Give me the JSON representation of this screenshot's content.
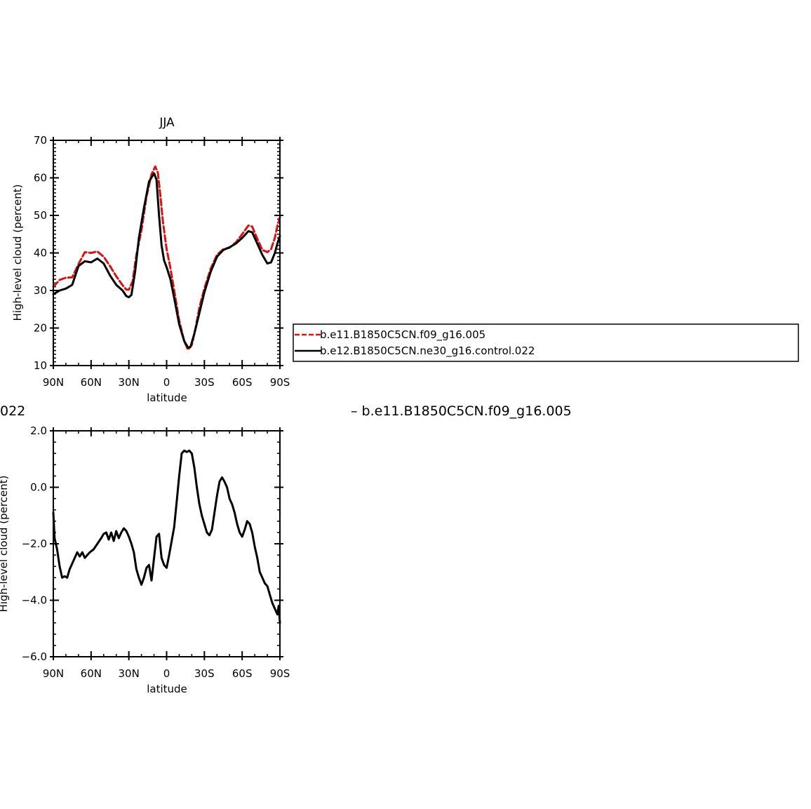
{
  "chart_data": [
    {
      "type": "line",
      "title": "JJA",
      "xlabel": "latitude",
      "ylabel": "High-level cloud (percent)",
      "x_direction": "north-to-south",
      "xlim": [
        90,
        -90
      ],
      "ylim": [
        10,
        70
      ],
      "xticks": [
        {
          "value": 90,
          "label": "90N"
        },
        {
          "value": 60,
          "label": "60N"
        },
        {
          "value": 30,
          "label": "30N"
        },
        {
          "value": 0,
          "label": "0"
        },
        {
          "value": -30,
          "label": "30S"
        },
        {
          "value": -60,
          "label": "60S"
        },
        {
          "value": -90,
          "label": "90S"
        }
      ],
      "yticks": [
        {
          "value": 10,
          "label": "10"
        },
        {
          "value": 20,
          "label": "20"
        },
        {
          "value": 30,
          "label": "30"
        },
        {
          "value": 40,
          "label": "40"
        },
        {
          "value": 50,
          "label": "50"
        },
        {
          "value": 60,
          "label": "60"
        },
        {
          "value": 70,
          "label": "70"
        }
      ],
      "grid": false,
      "legend": {
        "placement": "right",
        "entries": [
          {
            "name": "b.e11.B1850C5CN.f09_g16.005",
            "color": "#dd1111",
            "dash": "dashed"
          },
          {
            "name": "b.e12.B1850C5CN.ne30_g16.control.022",
            "color": "#000000",
            "dash": "solid"
          }
        ]
      },
      "series": [
        {
          "name": "b.e11.B1850C5CN.f09_g16.005",
          "color": "#dd1111",
          "dash": "dashed",
          "x": [
            90,
            85,
            80,
            75,
            70,
            65,
            60,
            55,
            50,
            45,
            40,
            35,
            32,
            30,
            27,
            24,
            20,
            16,
            12,
            9,
            7,
            5,
            3,
            0,
            -3,
            -6,
            -10,
            -14,
            -17,
            -20,
            -23,
            -26,
            -30,
            -35,
            -40,
            -45,
            -50,
            -55,
            -60,
            -65,
            -68,
            -72,
            -76,
            -80,
            -83,
            -86,
            -88,
            -90
          ],
          "values": [
            31,
            32.8,
            33.4,
            33.5,
            37,
            40.2,
            40,
            40.4,
            39,
            36.5,
            33.8,
            31.4,
            30.2,
            30.2,
            32.5,
            39.5,
            46,
            55,
            61,
            63,
            61.5,
            55.5,
            48.5,
            41,
            36,
            30,
            22,
            16.5,
            14.2,
            15.5,
            20,
            25.5,
            30.5,
            35.8,
            39.5,
            41,
            41.4,
            42.8,
            45,
            47.3,
            47,
            43.8,
            40.8,
            40.2,
            41,
            44,
            47.2,
            49.5
          ]
        },
        {
          "name": "b.e12.B1850C5CN.ne30_g16.control.022",
          "color": "#000000",
          "dash": "solid",
          "x": [
            90,
            85,
            80,
            75,
            70,
            65,
            60,
            55,
            50,
            45,
            40,
            35,
            32,
            30,
            28,
            25,
            22,
            18,
            14,
            10,
            8,
            6,
            4,
            2,
            0,
            -3,
            -6,
            -10,
            -14,
            -17,
            -19,
            -22,
            -26,
            -30,
            -35,
            -40,
            -45,
            -50,
            -55,
            -60,
            -65,
            -68,
            -72,
            -76,
            -80,
            -83,
            -86,
            -88,
            -90
          ],
          "values": [
            29,
            30,
            30.5,
            31.5,
            36.5,
            37.8,
            37.5,
            38.5,
            37.2,
            34,
            31.5,
            30,
            28.5,
            28.2,
            28.8,
            35,
            44,
            52,
            59,
            61.2,
            59.5,
            50,
            42,
            38,
            36.2,
            33,
            28,
            21,
            16.5,
            14.8,
            15,
            18.5,
            24,
            29.5,
            35,
            39,
            40.8,
            41.5,
            42.5,
            44,
            45.8,
            45.5,
            42.5,
            39.5,
            37.2,
            37.5,
            40,
            42.5,
            44.5
          ]
        }
      ]
    },
    {
      "type": "line",
      "title": "",
      "title_fragment": "022",
      "xlabel": "latitude",
      "ylabel": "High-level cloud (percent)",
      "x_direction": "north-to-south",
      "xlim": [
        90,
        -90
      ],
      "ylim": [
        -6,
        2
      ],
      "xticks": [
        {
          "value": 90,
          "label": "90N"
        },
        {
          "value": 60,
          "label": "60N"
        },
        {
          "value": 30,
          "label": "30N"
        },
        {
          "value": 0,
          "label": "0"
        },
        {
          "value": -30,
          "label": "30S"
        },
        {
          "value": -60,
          "label": "60S"
        },
        {
          "value": -90,
          "label": "90S"
        }
      ],
      "yticks": [
        {
          "value": -6,
          "label": "−6.0"
        },
        {
          "value": -4,
          "label": "−4.0"
        },
        {
          "value": -2,
          "label": "−2.0"
        },
        {
          "value": 0,
          "label": "0.0"
        },
        {
          "value": 2,
          "label": "2.0"
        }
      ],
      "grid": false,
      "right_fragment": "– b.e11.B1850C5CN.f09_g16.005",
      "series": [
        {
          "color": "#000000",
          "dash": "solid",
          "x": [
            90,
            89,
            87,
            85,
            83,
            81,
            79,
            77,
            75,
            73,
            71,
            69,
            67,
            65,
            63,
            61,
            58,
            55,
            52,
            50,
            48,
            46,
            44,
            42,
            40,
            38,
            36,
            34,
            32,
            30,
            28,
            26,
            24,
            22,
            20,
            18,
            16,
            14,
            12,
            10,
            8,
            6,
            4,
            2,
            0,
            -2,
            -4,
            -6,
            -8,
            -10,
            -12,
            -14,
            -16,
            -18,
            -20,
            -22,
            -24,
            -26,
            -28,
            -30,
            -32,
            -34,
            -36,
            -38,
            -40,
            -42,
            -44,
            -46,
            -48,
            -50,
            -52,
            -54,
            -56,
            -58,
            -60,
            -62,
            -64,
            -66,
            -68,
            -70,
            -72,
            -74,
            -76,
            -78,
            -80,
            -82,
            -84,
            -86,
            -88,
            -89,
            -90
          ],
          "values": [
            -0.9,
            -1.8,
            -2.2,
            -2.8,
            -3.2,
            -3.15,
            -3.2,
            -2.9,
            -2.7,
            -2.5,
            -2.3,
            -2.45,
            -2.3,
            -2.5,
            -2.4,
            -2.3,
            -2.2,
            -2.0,
            -1.8,
            -1.65,
            -1.6,
            -1.85,
            -1.6,
            -1.9,
            -1.55,
            -1.8,
            -1.6,
            -1.45,
            -1.55,
            -1.75,
            -2.0,
            -2.3,
            -2.9,
            -3.2,
            -3.45,
            -3.2,
            -2.85,
            -2.75,
            -3.3,
            -2.5,
            -1.75,
            -1.65,
            -2.5,
            -2.75,
            -2.85,
            -2.4,
            -1.9,
            -1.4,
            -0.5,
            0.4,
            1.2,
            1.3,
            1.25,
            1.3,
            1.2,
            0.7,
            0.0,
            -0.6,
            -1.0,
            -1.3,
            -1.6,
            -1.7,
            -1.5,
            -0.9,
            -0.3,
            0.2,
            0.35,
            0.2,
            0.0,
            -0.4,
            -0.6,
            -0.9,
            -1.3,
            -1.6,
            -1.75,
            -1.5,
            -1.2,
            -1.3,
            -1.6,
            -2.1,
            -2.5,
            -3.0,
            -3.2,
            -3.4,
            -3.5,
            -3.8,
            -4.1,
            -4.3,
            -4.5,
            -4.2,
            -4.8
          ]
        }
      ]
    }
  ]
}
